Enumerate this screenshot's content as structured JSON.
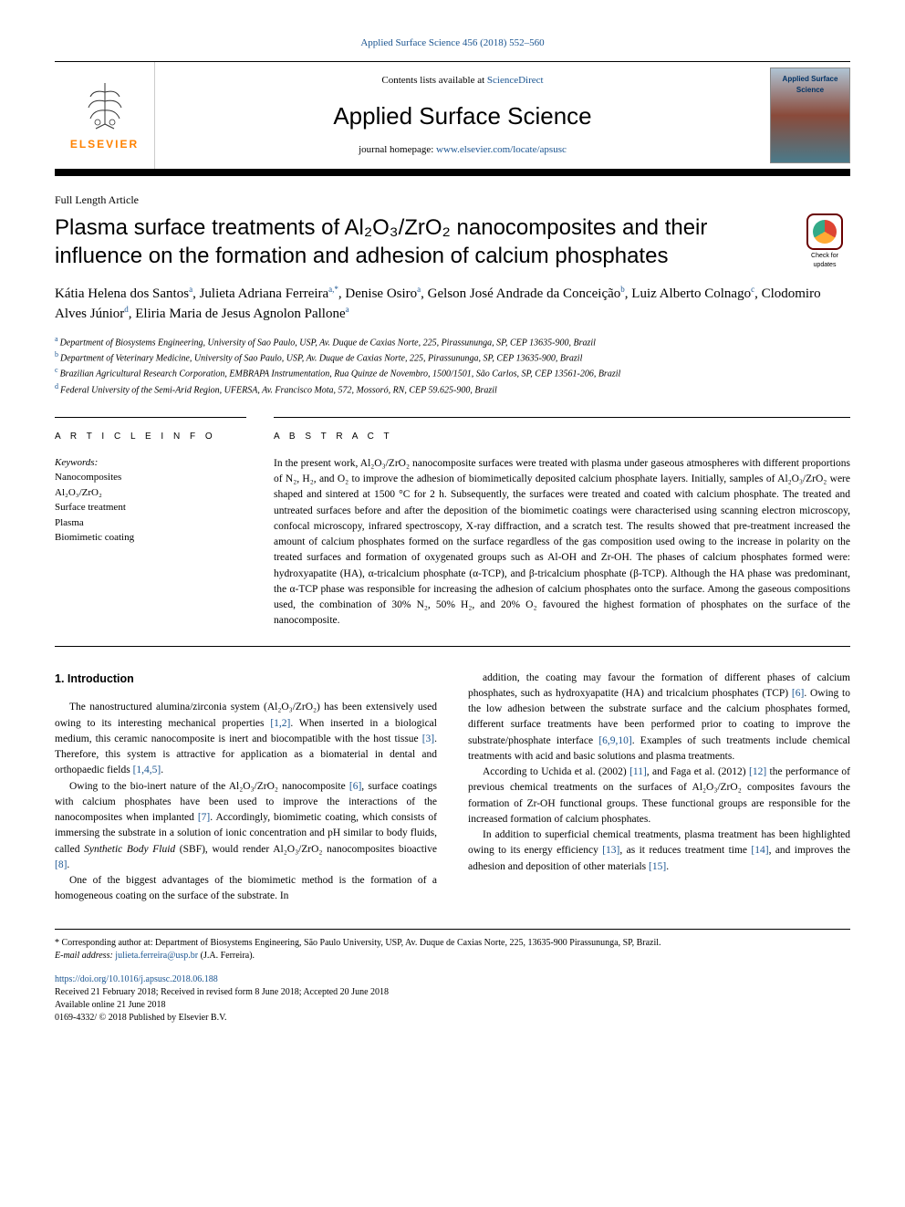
{
  "top_citation": "Applied Surface Science 456 (2018) 552–560",
  "header": {
    "contents_pre": "Contents lists available at ",
    "contents_link": "ScienceDirect",
    "journal": "Applied Surface Science",
    "homepage_pre": "journal homepage: ",
    "homepage_link": "www.elsevier.com/locate/apsusc",
    "elsevier": "ELSEVIER",
    "cover_text": "Applied Surface Science"
  },
  "article_type": "Full Length Article",
  "title": "Plasma surface treatments of Al₂O₃/ZrO₂ nanocomposites and their influence on the formation and adhesion of calcium phosphates",
  "check_label": "Check for updates",
  "authors_html": "Kátia Helena dos Santos<sup><a>a</a></sup>, Julieta Adriana Ferreira<sup><a>a</a>,*</sup>, Denise Osiro<sup><a>a</a></sup>, Gelson José Andrade da Conceição<sup><a>b</a></sup>, Luiz Alberto Colnago<sup><a>c</a></sup>, Clodomiro Alves Júnior<sup><a>d</a></sup>, Eliria Maria de Jesus Agnolon Pallone<sup><a>a</a></sup>",
  "affiliations": [
    {
      "sup": "a",
      "text": "Department of Biosystems Engineering, University of Sao Paulo, USP, Av. Duque de Caxias Norte, 225, Pirassununga, SP, CEP 13635-900, Brazil"
    },
    {
      "sup": "b",
      "text": "Department of Veterinary Medicine, University of Sao Paulo, USP, Av. Duque de Caxias Norte, 225, Pirassununga, SP, CEP 13635-900, Brazil"
    },
    {
      "sup": "c",
      "text": "Brazilian Agricultural Research Corporation, EMBRAPA Instrumentation, Rua Quinze de Novembro, 1500/1501, São Carlos, SP, CEP 13561-206, Brazil"
    },
    {
      "sup": "d",
      "text": "Federal University of the Semi-Arid Region, UFERSA, Av. Francisco Mota, 572, Mossoró, RN, CEP 59.625-900, Brazil"
    }
  ],
  "info_heading": "A R T I C L E  I N F O",
  "abstract_heading": "A B S T R A C T",
  "keywords_label": "Keywords:",
  "keywords": [
    "Nanocomposites",
    "Al₂O₃/ZrO₂",
    "Surface treatment",
    "Plasma",
    "Biomimetic coating"
  ],
  "abstract": "In the present work, Al₂O₃/ZrO₂ nanocomposite surfaces were treated with plasma under gaseous atmospheres with different proportions of N₂, H₂, and O₂ to improve the adhesion of biomimetically deposited calcium phosphate layers. Initially, samples of Al₂O₃/ZrO₂ were shaped and sintered at 1500 °C for 2 h. Subsequently, the surfaces were treated and coated with calcium phosphate. The treated and untreated surfaces before and after the deposition of the biomimetic coatings were characterised using scanning electron microscopy, confocal microscopy, infrared spectroscopy, X-ray diffraction, and a scratch test. The results showed that pre-treatment increased the amount of calcium phosphates formed on the surface regardless of the gas composition used owing to the increase in polarity on the treated surfaces and formation of oxygenated groups such as Al-OH and Zr-OH. The phases of calcium phosphates formed were: hydroxyapatite (HA), α-tricalcium phosphate (α-TCP), and β-tricalcium phosphate (β-TCP). Although the HA phase was predominant, the α-TCP phase was responsible for increasing the adhesion of calcium phosphates onto the surface. Among the gaseous compositions used, the combination of 30% N₂, 50% H₂, and 20% O₂ favoured the highest formation of phosphates on the surface of the nanocomposite.",
  "section1_heading": "1. Introduction",
  "col_left": [
    "The nanostructured alumina/zirconia system (Al₂O₃/ZrO₂) has been extensively used owing to its interesting mechanical properties <a class='ref'>[1,2]</a>. When inserted in a biological medium, this ceramic nanocomposite is inert and biocompatible with the host tissue <a class='ref'>[3]</a>. Therefore, this system is attractive for application as a biomaterial in dental and orthopaedic fields <a class='ref'>[1,4,5]</a>.",
    "Owing to the bio-inert nature of the Al₂O₃/ZrO₂ nanocomposite <a class='ref'>[6]</a>, surface coatings with calcium phosphates have been used to improve the interactions of the nanocomposites when implanted <a class='ref'>[7]</a>. Accordingly, biomimetic coating, which consists of immersing the substrate in a solution of ionic concentration and pH similar to body fluids, called <i>Synthetic Body Fluid</i> (SBF), would render Al₂O₃/ZrO₂ nanocomposites bioactive <a class='ref'>[8]</a>.",
    "One of the biggest advantages of the biomimetic method is the formation of a homogeneous coating on the surface of the substrate. In"
  ],
  "col_right": [
    "addition, the coating may favour the formation of different phases of calcium phosphates, such as hydroxyapatite (HA) and tricalcium phosphates (TCP) <a class='ref'>[6]</a>. Owing to the low adhesion between the substrate surface and the calcium phosphates formed, different surface treatments have been performed prior to coating to improve the substrate/phosphate interface <a class='ref'>[6,9,10]</a>. Examples of such treatments include chemical treatments with acid and basic solutions and plasma treatments.",
    "According to Uchida et al. (2002) <a class='ref'>[11]</a>, and Faga et al. (2012) <a class='ref'>[12]</a> the performance of previous chemical treatments on the surfaces of Al₂O₃/ZrO₂ composites favours the formation of Zr-OH functional groups. These functional groups are responsible for the increased formation of calcium phosphates.",
    "In addition to superficial chemical treatments, plasma treatment has been highlighted owing to its energy efficiency <a class='ref'>[13]</a>, as it reduces treatment time <a class='ref'>[14]</a>, and improves the adhesion and deposition of other materials <a class='ref'>[15]</a>."
  ],
  "footnote": {
    "corr_pre": "* Corresponding author at: Department of Biosystems Engineering, São Paulo University, USP, Av. Duque de Caxias Norte, 225, 13635-900 Pirassununga, SP, Brazil.",
    "email_label": "E-mail address: ",
    "email": "julieta.ferreira@usp.br",
    "email_post": " (J.A. Ferreira)."
  },
  "doi": {
    "link": "https://doi.org/10.1016/j.apsusc.2018.06.188",
    "received": "Received 21 February 2018; Received in revised form 8 June 2018; Accepted 20 June 2018",
    "online": "Available online 21 June 2018",
    "copyright": "0169-4332/ © 2018 Published by Elsevier B.V."
  },
  "colors": {
    "link": "#1a5490",
    "elsevier_orange": "#ff8200"
  }
}
